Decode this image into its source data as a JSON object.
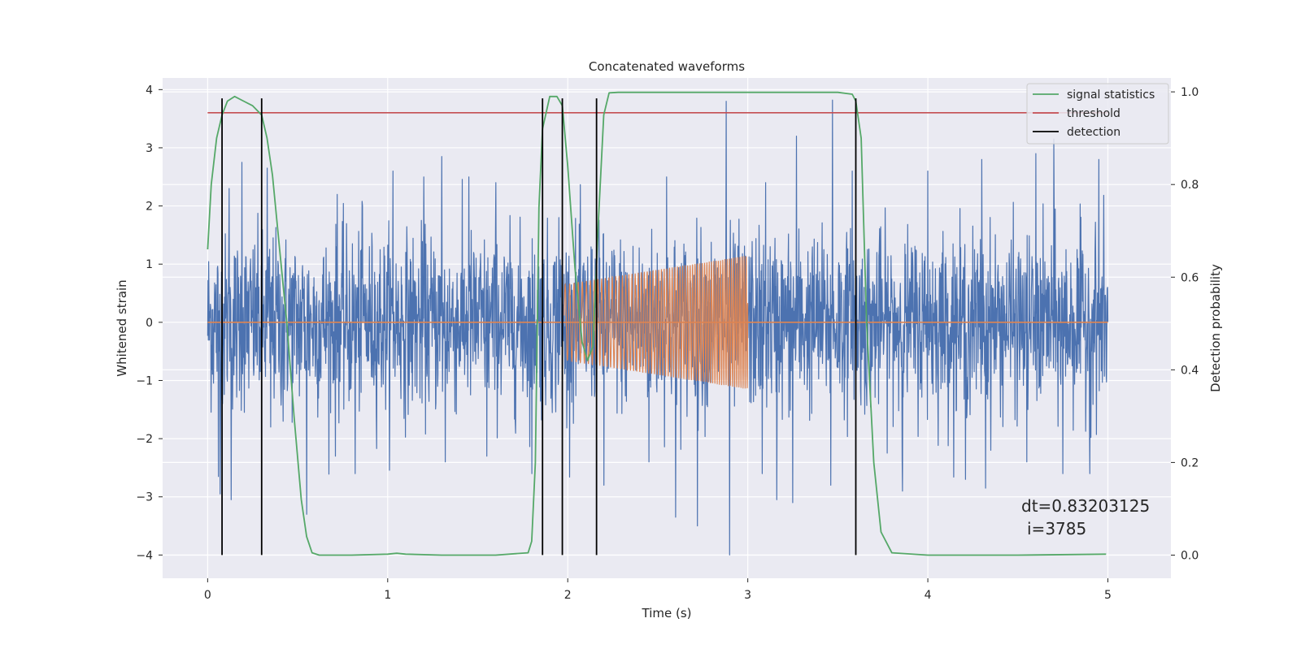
{
  "chart_data": {
    "type": "line",
    "title": "Concatenated waveforms",
    "xlabel": "Time (s)",
    "ylabel": "Whitened strain",
    "ylabel_right": "Detection probability",
    "xlim": [
      -0.25,
      5.35
    ],
    "ylim": [
      -4.4,
      4.2
    ],
    "ylim_right": [
      -0.05,
      1.03
    ],
    "x_ticks": [
      0,
      1,
      2,
      3,
      4,
      5
    ],
    "x_tick_labels": [
      "0",
      "1",
      "2",
      "3",
      "4",
      "5"
    ],
    "y_ticks": [
      4,
      3,
      2,
      1,
      0,
      -1,
      -2,
      -3,
      -4
    ],
    "y_tick_labels": [
      "4",
      "3",
      "2",
      "1",
      "0",
      "−1",
      "−2",
      "−3",
      "−4"
    ],
    "y_right_ticks": [
      1.0,
      0.8,
      0.6,
      0.4,
      0.2,
      0.0
    ],
    "y_right_tick_labels": [
      "1.0",
      "0.8",
      "0.6",
      "0.4",
      "0.2",
      "0.0"
    ],
    "grid": true,
    "legend_position": "top-right",
    "legend": [
      "signal statistics",
      "threshold",
      "detection"
    ],
    "colors": {
      "strain": "#4c72b0",
      "injected": "#dd8452",
      "signal_statistics": "#55a868",
      "threshold": "#c44e52",
      "detection": "#000000",
      "plot_bg": "#eaeaf2",
      "grid": "#ffffff"
    },
    "series": [
      {
        "name": "signal statistics",
        "axis": "right",
        "x": [
          0.0,
          0.02,
          0.05,
          0.08,
          0.11,
          0.15,
          0.2,
          0.25,
          0.3,
          0.33,
          0.36,
          0.4,
          0.44,
          0.48,
          0.52,
          0.55,
          0.58,
          0.62,
          0.8,
          1.0,
          1.05,
          1.1,
          1.3,
          1.6,
          1.78,
          1.8,
          1.82,
          1.84,
          1.86,
          1.9,
          1.94,
          1.97,
          2.0,
          2.04,
          2.08,
          2.11,
          2.14,
          2.17,
          2.2,
          2.23,
          2.28,
          2.5,
          3.0,
          3.5,
          3.58,
          3.6,
          3.63,
          3.66,
          3.7,
          3.74,
          3.8,
          4.0,
          4.5,
          4.99
        ],
        "y": [
          0.66,
          0.8,
          0.9,
          0.95,
          0.98,
          0.99,
          0.98,
          0.97,
          0.95,
          0.9,
          0.82,
          0.66,
          0.5,
          0.3,
          0.12,
          0.04,
          0.005,
          0.0,
          0.0,
          0.002,
          0.004,
          0.002,
          0.0,
          0.0,
          0.005,
          0.03,
          0.2,
          0.75,
          0.92,
          0.99,
          0.99,
          0.97,
          0.84,
          0.62,
          0.46,
          0.42,
          0.45,
          0.72,
          0.95,
          0.998,
          0.999,
          0.999,
          0.999,
          0.999,
          0.995,
          0.98,
          0.9,
          0.5,
          0.2,
          0.05,
          0.005,
          0.0,
          0.0,
          0.002
        ]
      },
      {
        "name": "threshold",
        "axis": "right",
        "x": [
          0.0,
          5.0
        ],
        "y": [
          0.955,
          0.955
        ]
      },
      {
        "name": "detection",
        "axis": "left",
        "x": [
          0.08,
          0.3,
          1.86,
          1.97,
          2.16,
          3.6
        ],
        "y_range": [
          -4.0,
          3.85
        ]
      },
      {
        "axis": "left",
        "description_series": "strain",
        "x_range": [
          0.0,
          5.0
        ],
        "envelope": 1.4,
        "peaks_high": [
          [
            0.06,
            2.2
          ],
          [
            0.12,
            2.3
          ],
          [
            0.19,
            2.75
          ],
          [
            0.33,
            2.65
          ],
          [
            0.72,
            2.2
          ],
          [
            0.71,
            -2.3
          ],
          [
            0.86,
            2.0
          ],
          [
            1.03,
            2.6
          ],
          [
            1.2,
            2.5
          ],
          [
            1.3,
            2.85
          ],
          [
            1.45,
            2.5
          ],
          [
            1.6,
            2.4
          ],
          [
            1.95,
            1.8
          ],
          [
            2.55,
            2.5
          ],
          [
            2.88,
            3.8
          ],
          [
            3.1,
            2.4
          ],
          [
            3.27,
            3.2
          ],
          [
            3.47,
            3.82
          ],
          [
            3.58,
            2.6
          ],
          [
            4.0,
            2.6
          ],
          [
            4.3,
            2.8
          ],
          [
            4.6,
            2.9
          ],
          [
            4.7,
            3.15
          ],
          [
            4.95,
            2.8
          ]
        ],
        "peaks_low": [
          [
            0.06,
            -2.65
          ],
          [
            0.07,
            -2.95
          ],
          [
            0.13,
            -3.05
          ],
          [
            0.3,
            -2.45
          ],
          [
            0.35,
            -1.8
          ],
          [
            0.42,
            -1.7
          ],
          [
            0.55,
            -3.3
          ],
          [
            0.82,
            -2.6
          ],
          [
            1.32,
            -2.4
          ],
          [
            1.55,
            -2.3
          ],
          [
            1.8,
            -2.6
          ],
          [
            2.2,
            -2.8
          ],
          [
            2.45,
            -2.4
          ],
          [
            2.6,
            -3.35
          ],
          [
            2.72,
            -3.5
          ],
          [
            2.9,
            -4.0
          ],
          [
            3.08,
            -2.6
          ],
          [
            3.16,
            -3.05
          ],
          [
            3.25,
            -3.1
          ],
          [
            3.46,
            -2.8
          ],
          [
            3.86,
            -2.9
          ],
          [
            4.21,
            -2.7
          ],
          [
            4.32,
            -2.85
          ],
          [
            4.55,
            -2.4
          ],
          [
            4.75,
            -2.6
          ],
          [
            4.9,
            -2.6
          ]
        ]
      },
      {
        "axis": "left",
        "description_series": "injected chirp",
        "x_range": [
          1.98,
          3.0
        ],
        "amplitude_start": 0.65,
        "amplitude_end": 1.15,
        "cycles_start": 40,
        "cycles_end": 90
      }
    ],
    "annotation": [
      "dt=0.83203125",
      "i=3785"
    ]
  }
}
